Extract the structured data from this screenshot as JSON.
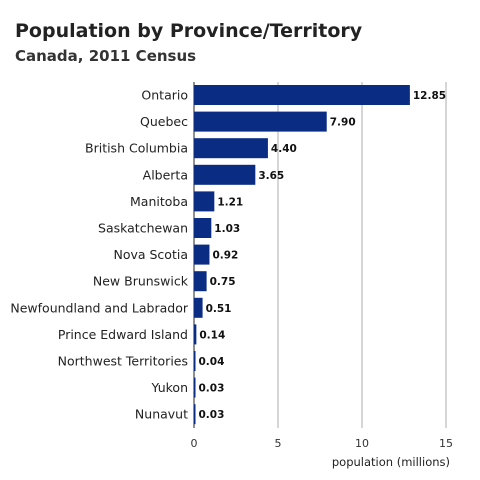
{
  "chart_data": {
    "type": "bar",
    "orientation": "horizontal",
    "title": "Population by Province/Territory",
    "subtitle": "Canada, 2011 Census",
    "xlabel": "population (millions)",
    "ylabel": "",
    "xlim": [
      0,
      15
    ],
    "xticks": [
      0,
      5,
      10,
      15
    ],
    "grid": true,
    "legend": "none",
    "bar_color": "#0a2c82",
    "categories": [
      "Ontario",
      "Quebec",
      "British Columbia",
      "Alberta",
      "Manitoba",
      "Saskatchewan",
      "Nova Scotia",
      "New Brunswick",
      "Newfoundland and Labrador",
      "Prince Edward Island",
      "Northwest Territories",
      "Yukon",
      "Nunavut"
    ],
    "values": [
      12.85,
      7.9,
      4.4,
      3.65,
      1.21,
      1.03,
      0.92,
      0.75,
      0.51,
      0.14,
      0.04,
      0.03,
      0.03
    ],
    "value_labels": [
      "12.85",
      "7.90",
      "4.40",
      "3.65",
      "1.21",
      "1.03",
      "0.92",
      "0.75",
      "0.51",
      "0.14",
      "0.04",
      "0.03",
      "0.03"
    ]
  }
}
